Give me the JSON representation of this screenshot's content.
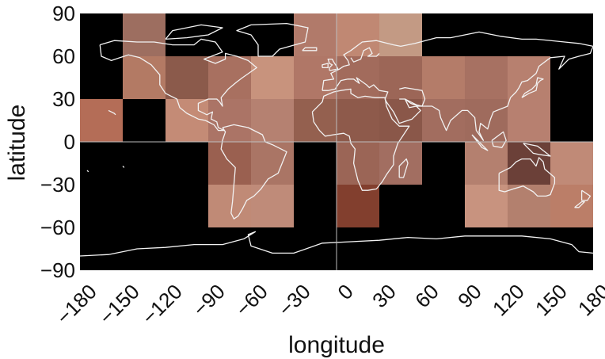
{
  "chart_data": {
    "type": "heatmap",
    "xlabel": "longitude",
    "ylabel": "latitude",
    "xlim": [
      -180,
      180
    ],
    "ylim": [
      -90,
      90
    ],
    "x_ticks": [
      "−180",
      "−150",
      "−120",
      "−90",
      "−60",
      "−30",
      "0",
      "30",
      "60",
      "90",
      "120",
      "150",
      "180"
    ],
    "y_ticks": [
      "90",
      "60",
      "30",
      "0",
      "−30",
      "−60",
      "−90"
    ],
    "grid_cell_size_deg": 30,
    "background_color": "#000000",
    "coastline_color": "#f2f2f2",
    "cells": [
      {
        "lon": [
          -150,
          -120
        ],
        "lat": [
          60,
          90
        ],
        "color": "#9d6e60"
      },
      {
        "lon": [
          -30,
          0
        ],
        "lat": [
          60,
          90
        ],
        "color": "#b17a6a"
      },
      {
        "lon": [
          0,
          30
        ],
        "lat": [
          60,
          90
        ],
        "color": "#c08873"
      },
      {
        "lon": [
          30,
          60
        ],
        "lat": [
          60,
          90
        ],
        "color": "#c39a84"
      },
      {
        "lon": [
          -150,
          -120
        ],
        "lat": [
          30,
          60
        ],
        "color": "#b37a64"
      },
      {
        "lon": [
          -120,
          -90
        ],
        "lat": [
          30,
          60
        ],
        "color": "#8b5a4b"
      },
      {
        "lon": [
          -90,
          -60
        ],
        "lat": [
          30,
          60
        ],
        "color": "#a87060"
      },
      {
        "lon": [
          -60,
          -30
        ],
        "lat": [
          30,
          60
        ],
        "color": "#c8937d"
      },
      {
        "lon": [
          -30,
          0
        ],
        "lat": [
          30,
          60
        ],
        "color": "#b07767"
      },
      {
        "lon": [
          0,
          30
        ],
        "lat": [
          30,
          60
        ],
        "color": "#a26b5c"
      },
      {
        "lon": [
          30,
          60
        ],
        "lat": [
          30,
          60
        ],
        "color": "#9c6657"
      },
      {
        "lon": [
          60,
          90
        ],
        "lat": [
          30,
          60
        ],
        "color": "#b47c69"
      },
      {
        "lon": [
          90,
          120
        ],
        "lat": [
          30,
          60
        ],
        "color": "#a77162"
      },
      {
        "lon": [
          120,
          150
        ],
        "lat": [
          30,
          60
        ],
        "color": "#b7806f"
      },
      {
        "lon": [
          -180,
          -150
        ],
        "lat": [
          0,
          30
        ],
        "color": "#b46d57"
      },
      {
        "lon": [
          -120,
          -90
        ],
        "lat": [
          0,
          30
        ],
        "color": "#c48b76"
      },
      {
        "lon": [
          -90,
          -60
        ],
        "lat": [
          0,
          30
        ],
        "color": "#ab7466"
      },
      {
        "lon": [
          -60,
          -30
        ],
        "lat": [
          0,
          30
        ],
        "color": "#b58171"
      },
      {
        "lon": [
          -30,
          0
        ],
        "lat": [
          0,
          30
        ],
        "color": "#94604f"
      },
      {
        "lon": [
          0,
          30
        ],
        "lat": [
          0,
          30
        ],
        "color": "#8e5a4b"
      },
      {
        "lon": [
          30,
          60
        ],
        "lat": [
          0,
          30
        ],
        "color": "#8a5749"
      },
      {
        "lon": [
          60,
          90
        ],
        "lat": [
          0,
          30
        ],
        "color": "#a26d5f"
      },
      {
        "lon": [
          90,
          120
        ],
        "lat": [
          0,
          30
        ],
        "color": "#9f6b5d"
      },
      {
        "lon": [
          120,
          150
        ],
        "lat": [
          0,
          30
        ],
        "color": "#b78070"
      },
      {
        "lon": [
          -90,
          -60
        ],
        "lat": [
          -30,
          0
        ],
        "color": "#9a6050"
      },
      {
        "lon": [
          -60,
          -30
        ],
        "lat": [
          -30,
          0
        ],
        "color": "#aa7565"
      },
      {
        "lon": [
          0,
          30
        ],
        "lat": [
          -30,
          0
        ],
        "color": "#9b6556"
      },
      {
        "lon": [
          30,
          60
        ],
        "lat": [
          -30,
          0
        ],
        "color": "#a26e61"
      },
      {
        "lon": [
          90,
          120
        ],
        "lat": [
          -30,
          0
        ],
        "color": "#b4806f"
      },
      {
        "lon": [
          120,
          150
        ],
        "lat": [
          -30,
          0
        ],
        "color": "#6b4038"
      },
      {
        "lon": [
          150,
          180
        ],
        "lat": [
          -30,
          0
        ],
        "color": "#c08a77"
      },
      {
        "lon": [
          -90,
          -60
        ],
        "lat": [
          -60,
          -30
        ],
        "color": "#c08a76"
      },
      {
        "lon": [
          -60,
          -30
        ],
        "lat": [
          -60,
          -30
        ],
        "color": "#bf8b79"
      },
      {
        "lon": [
          0,
          30
        ],
        "lat": [
          -60,
          -30
        ],
        "color": "#823f2e"
      },
      {
        "lon": [
          90,
          120
        ],
        "lat": [
          -60,
          -30
        ],
        "color": "#c8937f"
      },
      {
        "lon": [
          120,
          150
        ],
        "lat": [
          -60,
          -30
        ],
        "color": "#b3806e"
      },
      {
        "lon": [
          150,
          180
        ],
        "lat": [
          -60,
          -30
        ],
        "color": "#bb7e68"
      }
    ]
  }
}
